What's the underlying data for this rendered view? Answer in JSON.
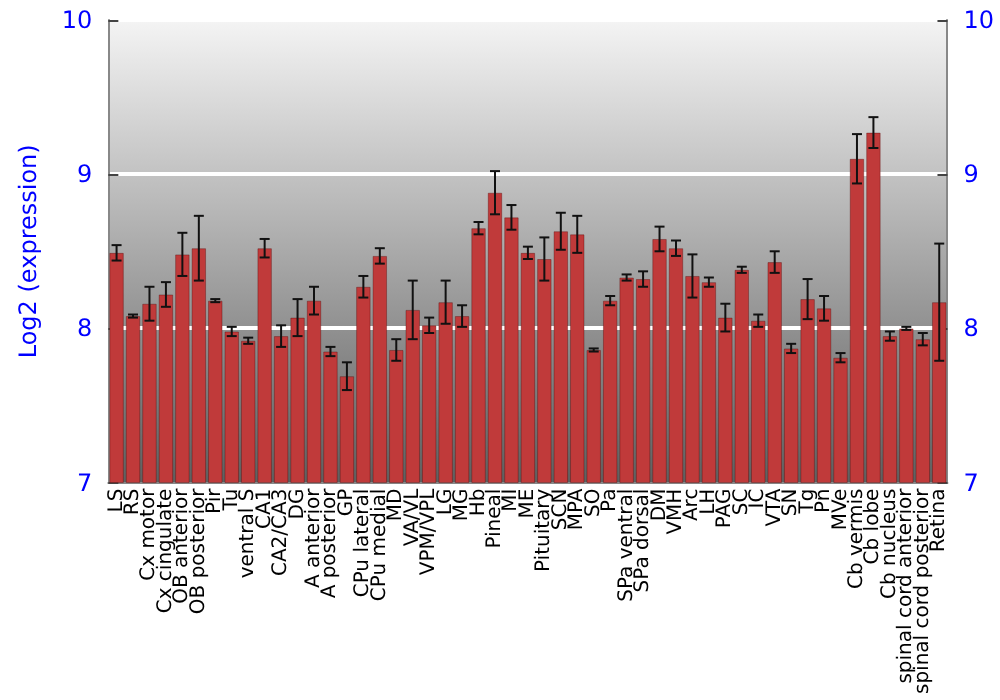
{
  "chart_data": {
    "type": "bar",
    "ylabel": "Log2 (expression)",
    "categories": [
      "LS",
      "RS",
      "Cx motor",
      "Cx cingulate",
      "OB anterior",
      "OB posterior",
      "Pir",
      "Tu",
      "ventral S",
      "CA1",
      "CA2/CA3",
      "DG",
      "A anterior",
      "A posterior",
      "GP",
      "CPu lateral",
      "CPu medial",
      "MD",
      "VA/VL",
      "VPM/VPL",
      "LG",
      "MG",
      "Hb",
      "Pineal",
      "MI",
      "ME",
      "Pituitary",
      "SCN",
      "MPA",
      "SO",
      "Pa",
      "SPa ventral",
      "SPa dorsal",
      "DM",
      "VMH",
      "Arc",
      "LH",
      "PAG",
      "SC",
      "IC",
      "VTA",
      "SN",
      "Tg",
      "Pn",
      "MVe",
      "Cb vermis",
      "Cb lobe",
      "Cb nucleus",
      "spinal cord anterior",
      "spinal cord posterior",
      "Retina"
    ],
    "series": [
      {
        "color": "#c03a3a",
        "values": [
          8.49,
          8.08,
          8.16,
          8.22,
          8.48,
          8.52,
          8.18,
          7.98,
          7.92,
          8.52,
          7.95,
          8.07,
          8.18,
          7.85,
          7.69,
          8.27,
          8.47,
          7.86,
          8.12,
          8.02,
          8.17,
          8.08,
          8.65,
          8.88,
          8.72,
          8.49,
          8.45,
          8.63,
          8.61,
          7.86,
          8.18,
          8.33,
          8.32,
          8.58,
          8.52,
          8.34,
          8.3,
          8.07,
          8.38,
          8.05,
          8.43,
          7.87,
          8.19,
          8.13,
          7.81,
          9.1,
          9.27,
          7.95,
          8.0,
          7.93,
          8.17
        ],
        "errors": [
          0.05,
          0.01,
          0.11,
          0.08,
          0.14,
          0.21,
          0.01,
          0.03,
          0.02,
          0.06,
          0.07,
          0.12,
          0.09,
          0.03,
          0.09,
          0.07,
          0.05,
          0.07,
          0.19,
          0.05,
          0.14,
          0.07,
          0.04,
          0.14,
          0.08,
          0.04,
          0.14,
          0.12,
          0.12,
          0.01,
          0.03,
          0.02,
          0.05,
          0.08,
          0.05,
          0.14,
          0.03,
          0.09,
          0.02,
          0.04,
          0.07,
          0.03,
          0.13,
          0.08,
          0.03,
          0.16,
          0.1,
          0.03,
          0.01,
          0.04,
          0.38
        ]
      }
    ],
    "ylim": [
      7,
      10
    ],
    "yticks": [
      7,
      8,
      9,
      10
    ],
    "y2lim": [
      7,
      10
    ],
    "y2ticks": [
      7,
      8,
      9,
      10
    ],
    "grid": "y"
  }
}
